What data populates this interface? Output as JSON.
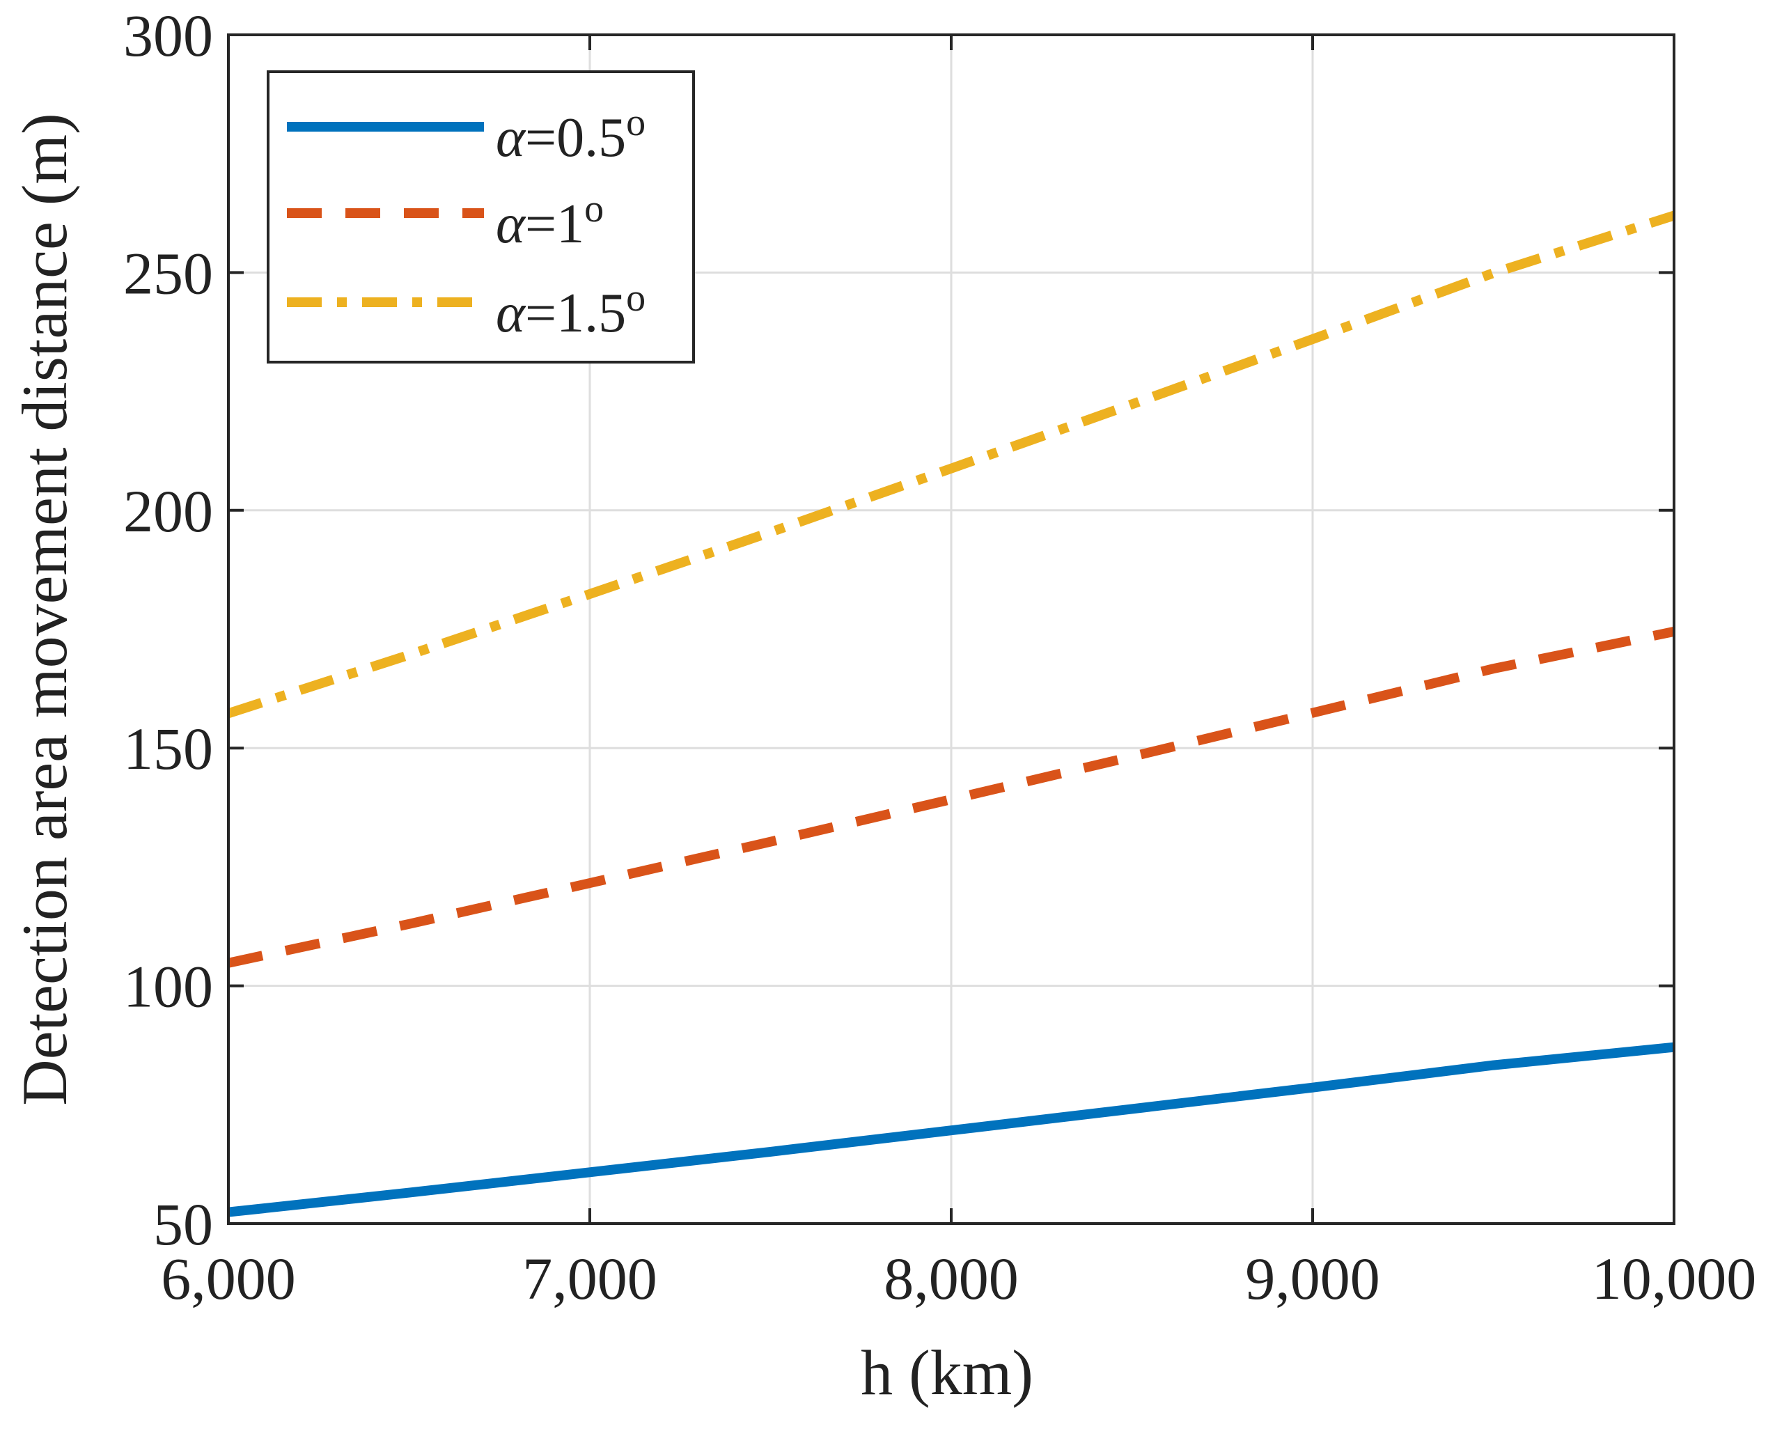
{
  "chart_data": {
    "type": "line",
    "title": "",
    "xlabel": "h (km)",
    "ylabel": "Detection area movement distance (m)",
    "xlim": [
      6000,
      10000
    ],
    "ylim": [
      50,
      300
    ],
    "xticks": [
      6000,
      7000,
      8000,
      9000,
      10000
    ],
    "xtick_labels": [
      "6,000",
      "7,000",
      "8,000",
      "9,000",
      "10,000"
    ],
    "yticks": [
      50,
      100,
      150,
      200,
      250,
      300
    ],
    "ytick_labels": [
      "50",
      "100",
      "150",
      "200",
      "250",
      "300"
    ],
    "grid": true,
    "legend_position": "top-left",
    "x": [
      6000,
      6500,
      7000,
      7500,
      8000,
      8500,
      9000,
      9500,
      10000
    ],
    "series": [
      {
        "name": "α=0.5°",
        "legend_symbol": "α",
        "legend_value": "=0.5",
        "legend_degree": "o",
        "color": "#0072BD",
        "style": "solid",
        "values": [
          52.4,
          56.5,
          60.8,
          65.1,
          69.6,
          74.1,
          78.6,
          83.3,
          87.1
        ]
      },
      {
        "name": "α=1°",
        "legend_symbol": "α",
        "legend_value": "=1",
        "legend_degree": "o",
        "color": "#D95319",
        "style": "dashed",
        "values": [
          104.8,
          113.0,
          121.6,
          130.3,
          139.2,
          148.2,
          157.4,
          166.7,
          174.5
        ]
      },
      {
        "name": "α=1.5°",
        "legend_symbol": "α",
        "legend_value": "=1.5",
        "legend_degree": "o",
        "color": "#EDB120",
        "style": "dashdot",
        "values": [
          157.3,
          169.6,
          182.4,
          195.4,
          208.8,
          222.3,
          236.0,
          249.9,
          262.0
        ]
      }
    ]
  }
}
